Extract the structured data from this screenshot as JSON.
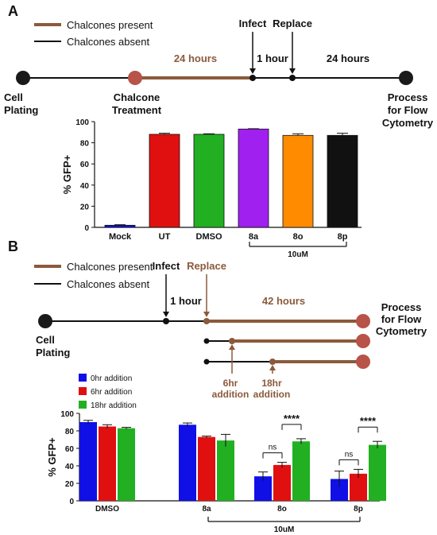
{
  "panel_a": {
    "letter": "A",
    "legend": {
      "present": "Chalcones present",
      "absent": "Chalcones absent"
    },
    "timeline": {
      "labels": {
        "infect": "Infect",
        "replace": "Replace",
        "hours_24_a": "24 hours",
        "hour_1": "1 hour",
        "hours_24_b": "24 hours",
        "cell_plating_1": "Cell",
        "cell_plating_2": "Plating",
        "chalcone_1": "Chalcone",
        "chalcone_2": "Treatment",
        "process_1": "Process",
        "process_2": "for Flow",
        "process_3": "Cytometry"
      }
    }
  },
  "panel_b": {
    "letter": "B",
    "legend": {
      "present": "Chalcones present",
      "absent": "Chalcones absent"
    },
    "timeline": {
      "labels": {
        "infect": "Infect",
        "replace": "Replace",
        "hour_1": "1 hour",
        "hours_42": "42 hours",
        "cell_plating_1": "Cell",
        "cell_plating_2": "Plating",
        "process_1": "Process",
        "process_2": "for Flow",
        "process_3": "Cytometry",
        "add6_1": "6hr",
        "add6_2": "addition",
        "add18_1": "18hr",
        "add18_2": "addition"
      }
    }
  },
  "colors": {
    "brown": "#8b5a3c",
    "timeline_dot": "#b8534a",
    "black": "#1a1a1a",
    "blue": "#1010e6",
    "red": "#e01010",
    "green": "#22b022",
    "purple": "#a020f0",
    "orange": "#ff8c00"
  },
  "chart_data": [
    {
      "type": "bar",
      "ylabel": "% GFP+",
      "ylim": [
        0,
        100
      ],
      "yticks": [
        0,
        20,
        40,
        60,
        80,
        100
      ],
      "categories": [
        "Mock",
        "UT",
        "DMSO",
        "8a",
        "8o",
        "8p"
      ],
      "values": [
        2,
        88,
        88,
        93,
        87,
        87
      ],
      "errors": [
        0.5,
        1,
        0.5,
        0.3,
        1.5,
        2
      ],
      "bar_colors": [
        "#1010e6",
        "#e01010",
        "#22b022",
        "#a020f0",
        "#ff8c00",
        "#111111"
      ],
      "bracket_label": "10uM"
    },
    {
      "type": "bar",
      "ylabel": "% GFP+",
      "ylim": [
        0,
        100
      ],
      "yticks": [
        0,
        20,
        40,
        60,
        80,
        100
      ],
      "categories": [
        "DMSO",
        "8a",
        "8o",
        "8p"
      ],
      "series": [
        {
          "name": "0hr addition",
          "color": "#1010e6",
          "values": [
            90,
            87,
            28,
            25
          ],
          "errors": [
            2,
            2,
            5,
            9
          ]
        },
        {
          "name": "6hr addition",
          "color": "#e01010",
          "values": [
            85,
            73,
            41,
            31
          ],
          "errors": [
            2,
            1,
            3,
            5
          ]
        },
        {
          "name": "18hr addition",
          "color": "#22b022",
          "values": [
            83,
            69,
            68,
            64
          ],
          "errors": [
            1,
            7,
            3,
            4
          ]
        }
      ],
      "significance": [
        {
          "group": "8o",
          "ns": "ns",
          "stars": "****"
        },
        {
          "group": "8p",
          "ns": "ns",
          "stars": "****"
        }
      ],
      "bracket_label": "10uM"
    }
  ]
}
